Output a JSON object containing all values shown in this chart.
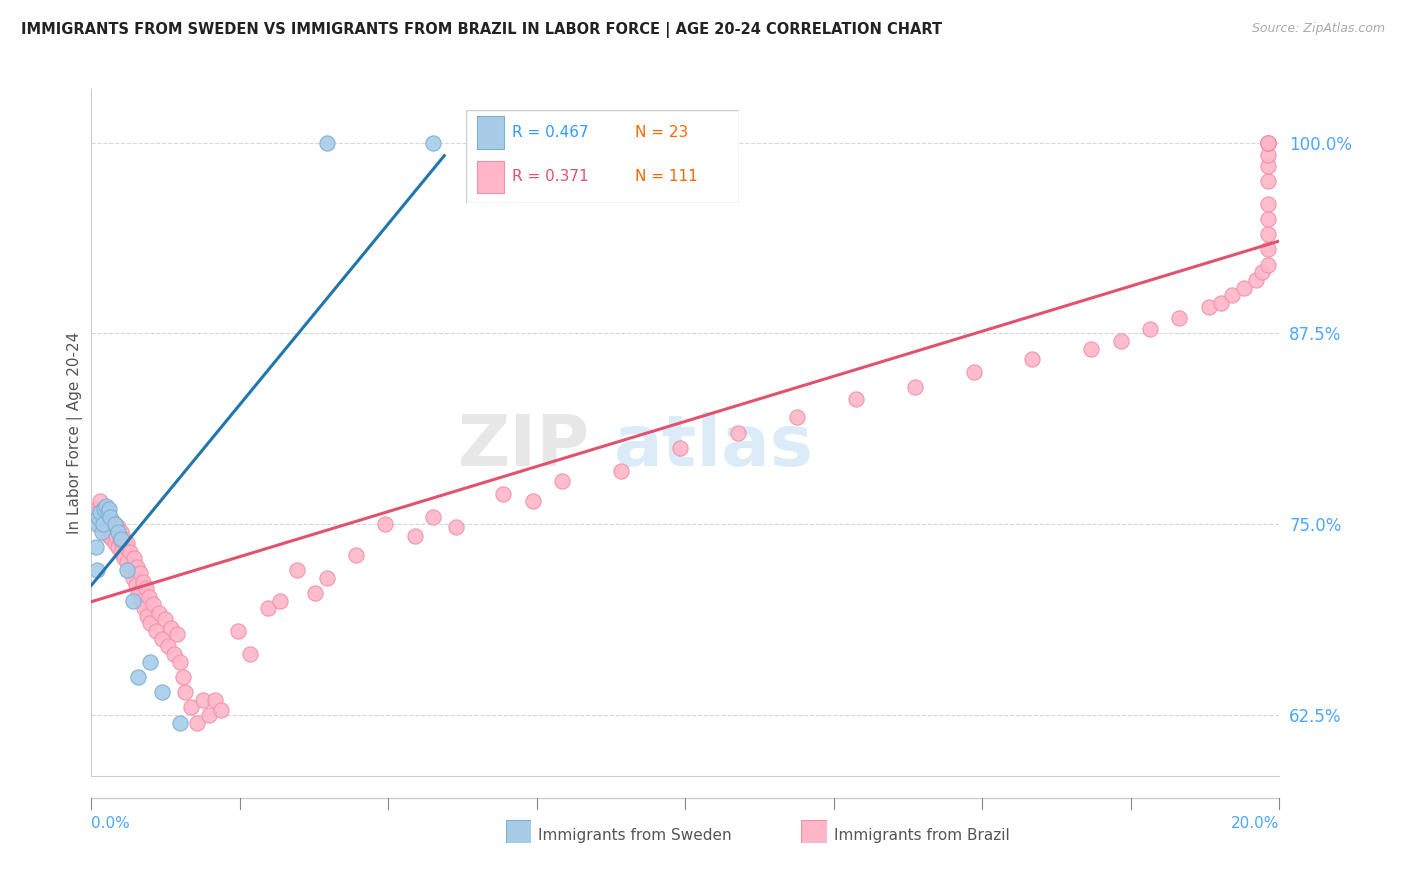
{
  "title": "IMMIGRANTS FROM SWEDEN VS IMMIGRANTS FROM BRAZIL IN LABOR FORCE | AGE 20-24 CORRELATION CHART",
  "source": "Source: ZipAtlas.com",
  "ylabel": "In Labor Force | Age 20-24",
  "legend_sweden": "Immigrants from Sweden",
  "legend_brazil": "Immigrants from Brazil",
  "r_sweden": "0.467",
  "n_sweden": "23",
  "r_brazil": "0.371",
  "n_brazil": "111",
  "color_sweden_fill": "#a8cce8",
  "color_brazil_fill": "#ffb6c8",
  "color_sweden_edge": "#7aafd4",
  "color_brazil_edge": "#f090a8",
  "color_sweden_line": "#2176ae",
  "color_brazil_line": "#e0526e",
  "color_r_sweden": "#3399ff",
  "color_n_sweden": "#ff6600",
  "color_r_brazil": "#e0526e",
  "color_n_brazil": "#ff6600",
  "watermark_zip": "ZIP",
  "watermark_atlas": "atlas",
  "background": "#ffffff",
  "xlim": [
    0.0,
    0.202
  ],
  "ylim": [
    0.585,
    1.035
  ],
  "yticks": [
    0.625,
    0.75,
    0.875,
    1.0
  ],
  "ytick_labels": [
    "62.5%",
    "75.0%",
    "87.5%",
    "100.0%"
  ],
  "sweden_x": [
    0.0008,
    0.001,
    0.001,
    0.0012,
    0.0015,
    0.0018,
    0.002,
    0.0022,
    0.0025,
    0.0028,
    0.003,
    0.0032,
    0.004,
    0.0045,
    0.005,
    0.006,
    0.007,
    0.008,
    0.01,
    0.012,
    0.015,
    0.04,
    0.058
  ],
  "sweden_y": [
    0.735,
    0.72,
    0.75,
    0.755,
    0.758,
    0.745,
    0.75,
    0.76,
    0.762,
    0.758,
    0.76,
    0.755,
    0.75,
    0.745,
    0.74,
    0.72,
    0.7,
    0.65,
    0.66,
    0.64,
    0.62,
    1.0,
    1.0
  ],
  "brazil_x": [
    0.0008,
    0.001,
    0.001,
    0.0012,
    0.0015,
    0.0015,
    0.0018,
    0.002,
    0.002,
    0.0022,
    0.0025,
    0.0025,
    0.0028,
    0.003,
    0.003,
    0.0032,
    0.0035,
    0.0035,
    0.0038,
    0.004,
    0.004,
    0.0042,
    0.0045,
    0.0045,
    0.0048,
    0.005,
    0.005,
    0.0055,
    0.0055,
    0.0058,
    0.006,
    0.006,
    0.0065,
    0.0065,
    0.007,
    0.0072,
    0.0075,
    0.0078,
    0.008,
    0.0082,
    0.0085,
    0.0088,
    0.009,
    0.0092,
    0.0095,
    0.0098,
    0.01,
    0.0105,
    0.011,
    0.0115,
    0.012,
    0.0125,
    0.013,
    0.0135,
    0.014,
    0.0145,
    0.015,
    0.0155,
    0.016,
    0.017,
    0.018,
    0.019,
    0.02,
    0.021,
    0.022,
    0.025,
    0.027,
    0.03,
    0.032,
    0.035,
    0.038,
    0.04,
    0.045,
    0.05,
    0.055,
    0.058,
    0.062,
    0.07,
    0.075,
    0.08,
    0.09,
    0.1,
    0.11,
    0.12,
    0.13,
    0.14,
    0.15,
    0.16,
    0.17,
    0.175,
    0.18,
    0.185,
    0.19,
    0.192,
    0.194,
    0.196,
    0.198,
    0.199,
    0.2,
    0.2,
    0.2,
    0.2,
    0.2,
    0.2,
    0.2,
    0.2,
    0.2,
    0.2,
    0.2,
    0.2,
    0.2
  ],
  "brazil_y": [
    0.755,
    0.76,
    0.75,
    0.758,
    0.765,
    0.752,
    0.755,
    0.748,
    0.76,
    0.755,
    0.745,
    0.758,
    0.75,
    0.742,
    0.755,
    0.748,
    0.74,
    0.752,
    0.745,
    0.738,
    0.75,
    0.742,
    0.735,
    0.748,
    0.74,
    0.732,
    0.745,
    0.728,
    0.74,
    0.735,
    0.725,
    0.738,
    0.72,
    0.732,
    0.715,
    0.728,
    0.71,
    0.722,
    0.705,
    0.718,
    0.7,
    0.712,
    0.695,
    0.708,
    0.69,
    0.702,
    0.685,
    0.698,
    0.68,
    0.692,
    0.675,
    0.688,
    0.67,
    0.682,
    0.665,
    0.678,
    0.66,
    0.65,
    0.64,
    0.63,
    0.62,
    0.635,
    0.625,
    0.635,
    0.628,
    0.68,
    0.665,
    0.695,
    0.7,
    0.72,
    0.705,
    0.715,
    0.73,
    0.75,
    0.742,
    0.755,
    0.748,
    0.77,
    0.765,
    0.778,
    0.785,
    0.8,
    0.81,
    0.82,
    0.832,
    0.84,
    0.85,
    0.858,
    0.865,
    0.87,
    0.878,
    0.885,
    0.892,
    0.895,
    0.9,
    0.905,
    0.91,
    0.915,
    0.92,
    0.93,
    0.94,
    0.95,
    0.96,
    0.975,
    0.985,
    0.992,
    1.0,
    1.0,
    1.0,
    1.0,
    1.0
  ]
}
